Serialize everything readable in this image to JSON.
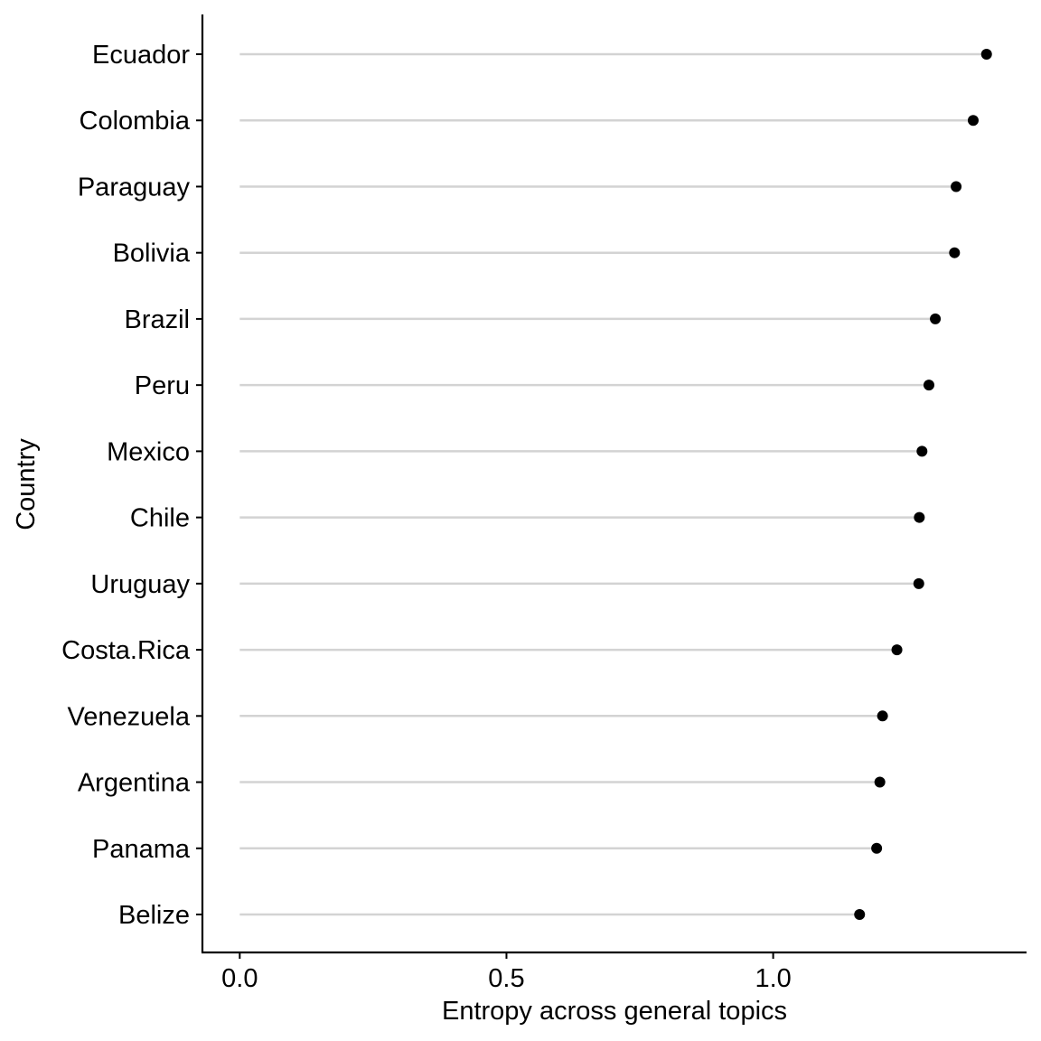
{
  "chart_data": {
    "type": "lollipop",
    "orientation": "horizontal",
    "xlabel": "Entropy across general topics",
    "ylabel": "Country",
    "xlim": [
      -0.07,
      1.475
    ],
    "x_ticks": [
      0.0,
      0.5,
      1.0
    ],
    "x_tick_labels": [
      "0.0",
      "0.5",
      "1.0"
    ],
    "grid": false,
    "legend": "none",
    "colors": {
      "stem": "#d3d3d3",
      "point": "#000000",
      "axis": "#000000"
    },
    "categories": [
      "Ecuador",
      "Colombia",
      "Paraguay",
      "Bolivia",
      "Brazil",
      "Peru",
      "Mexico",
      "Chile",
      "Uruguay",
      "Costa.Rica",
      "Venezuela",
      "Argentina",
      "Panama",
      "Belize"
    ],
    "values": [
      1.4,
      1.375,
      1.343,
      1.34,
      1.304,
      1.292,
      1.279,
      1.274,
      1.273,
      1.232,
      1.205,
      1.2,
      1.194,
      1.162
    ]
  }
}
